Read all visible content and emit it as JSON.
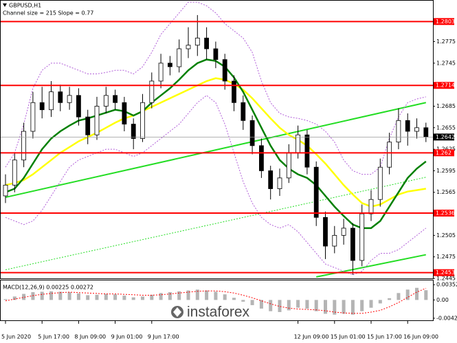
{
  "chart_data": [
    {
      "type": "candlestick",
      "title": "GBPUSD,H1",
      "subtitle": "Channel size = 215 Slope = 0.77",
      "categories": [
        "5 Jun 2020",
        null,
        null,
        null,
        "5 Jun 17:00",
        null,
        null,
        null,
        "8 Jun 09:00",
        null,
        null,
        null,
        "9 Jun 01:00",
        null,
        null,
        null,
        "9 Jun 17:00",
        null,
        null,
        null,
        null,
        null,
        null,
        null,
        null,
        null,
        null,
        null,
        null,
        null,
        null,
        null,
        "12 Jun 09:00",
        null,
        null,
        null,
        "15 Jun 01:00",
        null,
        null,
        null,
        "15 Jun 17:00",
        null,
        null,
        null,
        "16 Jun 09:00",
        null,
        null
      ],
      "ohlc": [
        [
          1.256,
          1.259,
          1.255,
          1.2575
        ],
        [
          1.2575,
          1.262,
          1.2565,
          1.261
        ],
        [
          1.261,
          1.2662,
          1.26,
          1.265
        ],
        [
          1.265,
          1.2705,
          1.264,
          1.269
        ],
        [
          1.269,
          1.2712,
          1.2668,
          1.268
        ],
        [
          1.268,
          1.272,
          1.267,
          1.2705
        ],
        [
          1.2705,
          1.2715,
          1.2678,
          1.269
        ],
        [
          1.269,
          1.2712,
          1.268,
          1.27
        ],
        [
          1.27,
          1.271,
          1.2658,
          1.267
        ],
        [
          1.267,
          1.268,
          1.2632,
          1.2645
        ],
        [
          1.2645,
          1.2698,
          1.2638,
          1.2685
        ],
        [
          1.2685,
          1.2712,
          1.2675,
          1.27
        ],
        [
          1.27,
          1.2708,
          1.268,
          1.269
        ],
        [
          1.269,
          1.2698,
          1.265,
          1.266
        ],
        [
          1.266,
          1.2668,
          1.2625,
          1.264
        ],
        [
          1.264,
          1.2702,
          1.2635,
          1.269
        ],
        [
          1.269,
          1.2732,
          1.2682,
          1.272
        ],
        [
          1.272,
          1.2758,
          1.271,
          1.2745
        ],
        [
          1.2745,
          1.2755,
          1.2728,
          1.274
        ],
        [
          1.274,
          1.2778,
          1.2732,
          1.2765
        ],
        [
          1.2765,
          1.2795,
          1.2752,
          1.277
        ],
        [
          1.277,
          1.2812,
          1.2755,
          1.278
        ],
        [
          1.278,
          1.2795,
          1.275,
          1.2765
        ],
        [
          1.2765,
          1.2775,
          1.2738,
          1.275
        ],
        [
          1.275,
          1.2758,
          1.2708,
          1.272
        ],
        [
          1.272,
          1.2728,
          1.2678,
          1.269
        ],
        [
          1.269,
          1.27,
          1.2652,
          1.2665
        ],
        [
          1.2665,
          1.2672,
          1.2618,
          1.263
        ],
        [
          1.263,
          1.264,
          1.2585,
          1.2595
        ],
        [
          1.2595,
          1.2602,
          1.2555,
          1.257
        ],
        [
          1.257,
          1.2598,
          1.256,
          1.2585
        ],
        [
          1.2585,
          1.2632,
          1.2578,
          1.262
        ],
        [
          1.262,
          1.2658,
          1.2612,
          1.2645
        ],
        [
          1.2645,
          1.2652,
          1.259,
          1.26
        ],
        [
          1.26,
          1.2608,
          1.2518,
          1.253
        ],
        [
          1.253,
          1.2538,
          1.2472,
          1.249
        ],
        [
          1.249,
          1.2518,
          1.248,
          1.2505
        ],
        [
          1.2505,
          1.2528,
          1.2492,
          1.2515
        ],
        [
          1.2515,
          1.2522,
          1.245,
          1.247
        ],
        [
          1.247,
          1.2548,
          1.2462,
          1.2535
        ],
        [
          1.2535,
          1.2568,
          1.2525,
          1.2555
        ],
        [
          1.2555,
          1.2612,
          1.2545,
          1.26
        ],
        [
          1.26,
          1.2648,
          1.259,
          1.2635
        ],
        [
          1.2635,
          1.2682,
          1.2625,
          1.2665
        ],
        [
          1.2665,
          1.2675,
          1.263,
          1.265
        ],
        [
          1.265,
          1.2668,
          1.264,
          1.2655
        ],
        [
          1.2655,
          1.2662,
          1.2635,
          1.2642
        ]
      ],
      "up_color": "#ffffff",
      "down_color": "#000000",
      "series": [
        {
          "color": "#b05cd8",
          "dash": true,
          "values": [
            1.26,
            1.262,
            1.266,
            1.271,
            1.2735,
            1.2745,
            1.2745,
            1.274,
            1.2735,
            1.273,
            1.273,
            1.2732,
            1.2735,
            1.2735,
            1.273,
            1.274,
            1.276,
            1.2785,
            1.28,
            1.2815,
            1.283,
            1.283,
            1.2825,
            1.2815,
            1.28,
            1.279,
            1.278,
            1.276,
            1.272,
            1.269,
            1.2675,
            1.267,
            1.2668,
            1.2665,
            1.266,
            1.265,
            1.2635,
            1.261,
            1.2595,
            1.259,
            1.259,
            1.26,
            1.264,
            1.267,
            1.269,
            1.2695,
            1.2698
          ]
        },
        {
          "color": "#b05cd8",
          "dash": true,
          "values": [
            1.253,
            1.2525,
            1.252,
            1.2525,
            1.254,
            1.256,
            1.258,
            1.26,
            1.261,
            1.2615,
            1.262,
            1.2625,
            1.2625,
            1.262,
            1.2615,
            1.262,
            1.263,
            1.264,
            1.265,
            1.266,
            1.2675,
            1.269,
            1.27,
            1.269,
            1.266,
            1.262,
            1.258,
            1.255,
            1.253,
            1.252,
            1.2515,
            1.252,
            1.251,
            1.2495,
            1.248,
            1.2465,
            1.246,
            1.2455,
            1.245,
            1.2455,
            1.247,
            1.248,
            1.248,
            1.2485,
            1.2495,
            1.2505,
            1.2515
          ]
        },
        {
          "color": "#ffff00",
          "dash": false,
          "values": [
            1.2575,
            1.2578,
            1.2582,
            1.259,
            1.26,
            1.261,
            1.262,
            1.2628,
            1.2636,
            1.2642,
            1.2648,
            1.2655,
            1.2662,
            1.2668,
            1.2672,
            1.2678,
            1.2684,
            1.269,
            1.2696,
            1.2702,
            1.2708,
            1.2714,
            1.272,
            1.2724,
            1.2722,
            1.2716,
            1.2708,
            1.2696,
            1.2682,
            1.2668,
            1.2655,
            1.2645,
            1.2638,
            1.263,
            1.2618,
            1.2605,
            1.259,
            1.2575,
            1.2562,
            1.255,
            1.2545,
            1.2548,
            1.2555,
            1.2562,
            1.2566,
            1.2568,
            1.257
          ]
        },
        {
          "color": "#008000",
          "dash": false,
          "values": [
            1.2565,
            1.257,
            1.2585,
            1.2605,
            1.2625,
            1.264,
            1.265,
            1.2658,
            1.2665,
            1.2668,
            1.2672,
            1.2676,
            1.268,
            1.2678,
            1.2672,
            1.2678,
            1.269,
            1.27,
            1.271,
            1.2722,
            1.2735,
            1.2745,
            1.275,
            1.2748,
            1.274,
            1.2725,
            1.2705,
            1.268,
            1.2655,
            1.263,
            1.261,
            1.2598,
            1.259,
            1.2585,
            1.2575,
            1.256,
            1.2545,
            1.2532,
            1.252,
            1.2515,
            1.2515,
            1.2525,
            1.2545,
            1.2565,
            1.2585,
            1.2598,
            1.2608
          ]
        }
      ],
      "trendlines": [
        {
          "x": [
            0,
            46
          ],
          "values": [
            1.2558,
            1.269
          ],
          "color": "#22dd22",
          "dash": false
        },
        {
          "x": [
            0,
            46
          ],
          "values": [
            1.2457,
            1.2586
          ],
          "color": "#22dd22",
          "dash": true
        },
        {
          "x": [
            34,
            46
          ],
          "values": [
            1.2447,
            1.2478
          ],
          "color": "#22dd22",
          "dash": false
        }
      ],
      "levels": [
        1.2803,
        1.2714,
        1.262,
        1.2536,
        1.2453
      ],
      "level_color": "#ff0000",
      "last_price": 1.2642,
      "ylim": [
        1.2445,
        1.2833
      ],
      "yticks": [
        1.2775,
        1.2745,
        1.2685,
        1.2655,
        1.2625,
        1.2595,
        1.2565,
        1.2505,
        1.2475,
        1.2445
      ]
    },
    {
      "type": "macd",
      "title": "MACD(12,26,9) 0.00225 0.00272",
      "histogram": [
        0.0002,
        0.0008,
        0.0014,
        0.0018,
        0.0019,
        0.002,
        0.0019,
        0.0018,
        0.0015,
        0.0011,
        0.0012,
        0.0014,
        0.0013,
        0.001,
        0.0006,
        0.0008,
        0.0012,
        0.0016,
        0.0018,
        0.002,
        0.0022,
        0.0024,
        0.0022,
        0.0019,
        0.0013,
        0.0005,
        -0.0004,
        -0.0012,
        -0.002,
        -0.0026,
        -0.0028,
        -0.0024,
        -0.0018,
        -0.002,
        -0.0026,
        -0.0032,
        -0.0034,
        -0.0032,
        -0.0034,
        -0.0026,
        -0.0018,
        -0.0008,
        0.0004,
        0.0016,
        0.0024,
        0.0028,
        0.00225
      ],
      "histogram_color": "#b4b4b4",
      "signal": [
        -0.0002,
        0.0002,
        0.0006,
        0.001,
        0.0013,
        0.0015,
        0.0017,
        0.0018,
        0.0017,
        0.0016,
        0.0015,
        0.0014,
        0.0014,
        0.0013,
        0.0012,
        0.0011,
        0.0011,
        0.0012,
        0.0014,
        0.0016,
        0.0018,
        0.002,
        0.0021,
        0.0021,
        0.0019,
        0.0016,
        0.0011,
        0.0005,
        -0.0002,
        -0.0009,
        -0.0015,
        -0.0019,
        -0.0021,
        -0.0022,
        -0.0023,
        -0.0025,
        -0.0028,
        -0.003,
        -0.0031,
        -0.0031,
        -0.0028,
        -0.0024,
        -0.0016,
        -0.0006,
        0.0006,
        0.0018,
        0.00272
      ],
      "signal_color": "#ff0000",
      "ylim": [
        -0.00471,
        0.00451
      ],
      "yticks": [
        0.00352,
        {
          "value": 0,
          "label": "0.00"
        },
        -0.00422
      ]
    }
  ],
  "watermark": "instaforex"
}
